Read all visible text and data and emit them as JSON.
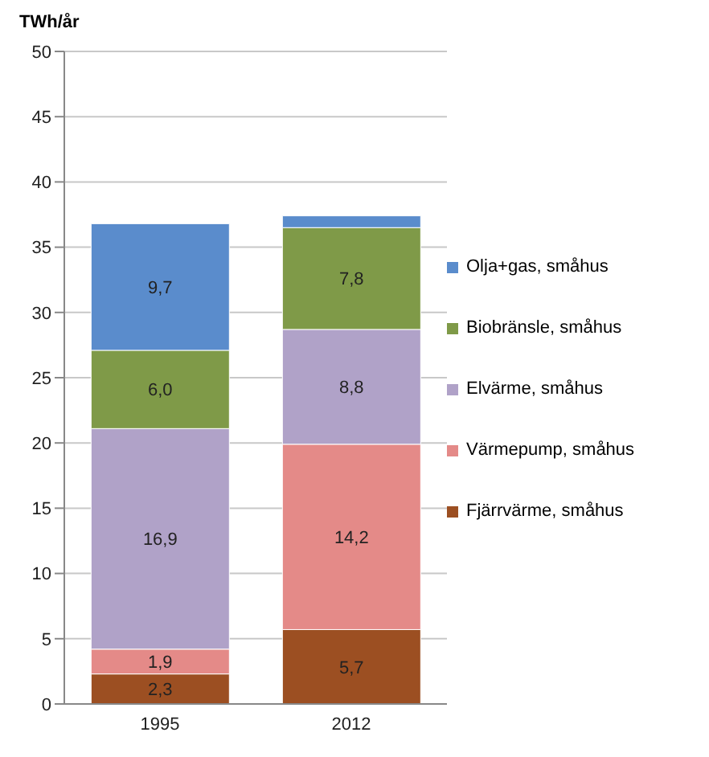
{
  "chart_data": {
    "type": "bar",
    "stacked": true,
    "ylabel": "TWh/år",
    "categories": [
      "1995",
      "2012"
    ],
    "series": [
      {
        "name": "Fjärrvärme, småhus",
        "color": "#9c4f22",
        "values": [
          2.3,
          5.7
        ],
        "value_labels": [
          "2,3",
          "5,7"
        ]
      },
      {
        "name": "Värmepump, småhus",
        "color": "#e48a88",
        "values": [
          1.9,
          14.2
        ],
        "value_labels": [
          "1,9",
          "14,2"
        ]
      },
      {
        "name": "Elvärme, småhus",
        "color": "#b0a2c8",
        "values": [
          16.9,
          8.8
        ],
        "value_labels": [
          "16,9",
          "8,8"
        ]
      },
      {
        "name": "Biobränsle, småhus",
        "color": "#7f9a48",
        "values": [
          6.0,
          7.8
        ],
        "value_labels": [
          "6,0",
          "7,8"
        ]
      },
      {
        "name": "Olja+gas, småhus",
        "color": "#5a8ccc",
        "values": [
          9.7,
          0.9
        ],
        "value_labels": [
          "9,7",
          null
        ]
      }
    ],
    "ylim": [
      0,
      50
    ],
    "yticks": [
      0,
      5,
      10,
      15,
      20,
      25,
      30,
      35,
      40,
      45,
      50
    ],
    "grid": "y",
    "legend": "right"
  }
}
